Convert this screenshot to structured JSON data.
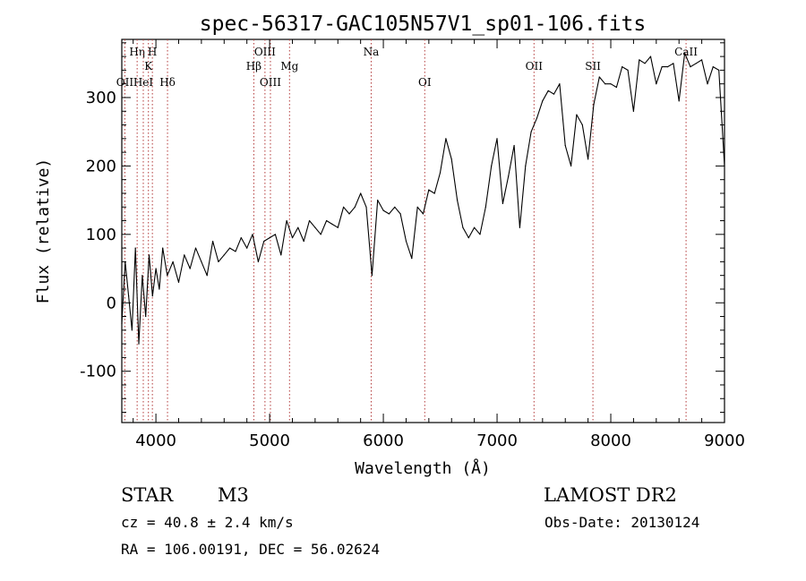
{
  "chart_data": {
    "type": "line",
    "title": "spec-56317-GAC105N57V1_sp01-106.fits",
    "xlabel": "Wavelength (Å)",
    "ylabel": "Flux (relative)",
    "xlim": [
      3700,
      9000
    ],
    "ylim": [
      -175,
      385
    ],
    "xticks": [
      4000,
      5000,
      6000,
      7000,
      8000,
      9000
    ],
    "yticks": [
      -100,
      0,
      100,
      200,
      300
    ],
    "series": [
      {
        "x": [
          3700,
          3730,
          3760,
          3790,
          3820,
          3850,
          3880,
          3910,
          3940,
          3970,
          4000,
          4030,
          4060,
          4100,
          4150,
          4200,
          4250,
          4300,
          4350,
          4400,
          4450,
          4500,
          4550,
          4600,
          4650,
          4700,
          4750,
          4800,
          4850,
          4900,
          4950,
          5000,
          5050,
          5100,
          5150,
          5200,
          5250,
          5300,
          5350,
          5400,
          5450,
          5500,
          5550,
          5600,
          5650,
          5700,
          5750,
          5800,
          5850,
          5900,
          5950,
          6000,
          6050,
          6100,
          6150,
          6200,
          6250,
          6300,
          6350,
          6400,
          6450,
          6500,
          6550,
          6600,
          6650,
          6700,
          6750,
          6800,
          6850,
          6900,
          6950,
          7000,
          7050,
          7100,
          7150,
          7200,
          7250,
          7300,
          7350,
          7400,
          7450,
          7500,
          7550,
          7600,
          7650,
          7700,
          7750,
          7800,
          7850,
          7900,
          7950,
          8000,
          8050,
          8100,
          8150,
          8200,
          8250,
          8300,
          8350,
          8400,
          8450,
          8500,
          8550,
          8600,
          8650,
          8700,
          8750,
          8800,
          8850,
          8900,
          8950,
          9000
        ],
        "y": [
          -30,
          60,
          10,
          -40,
          80,
          -60,
          40,
          -20,
          70,
          10,
          50,
          20,
          80,
          40,
          60,
          30,
          70,
          50,
          80,
          60,
          40,
          90,
          60,
          70,
          80,
          75,
          95,
          80,
          100,
          60,
          90,
          95,
          100,
          70,
          120,
          95,
          110,
          90,
          120,
          110,
          100,
          120,
          115,
          110,
          140,
          130,
          140,
          160,
          140,
          40,
          150,
          135,
          130,
          140,
          130,
          90,
          65,
          140,
          130,
          165,
          160,
          190,
          240,
          210,
          150,
          110,
          95,
          110,
          100,
          140,
          200,
          240,
          145,
          185,
          230,
          110,
          200,
          250,
          270,
          295,
          310,
          305,
          320,
          230,
          200,
          275,
          260,
          210,
          290,
          330,
          320,
          320,
          315,
          345,
          340,
          280,
          355,
          350,
          360,
          320,
          345,
          345,
          350,
          295,
          365,
          345,
          350,
          355,
          320,
          345,
          340,
          200
        ]
      }
    ],
    "annotations": {
      "lines": [
        {
          "label": "OII",
          "x": 3727,
          "row": 3
        },
        {
          "label": "Hη",
          "x": 3835,
          "row": 1
        },
        {
          "label": "HeI",
          "x": 3889,
          "row": 3
        },
        {
          "label": "K",
          "x": 3934,
          "row": 2
        },
        {
          "label": "H",
          "x": 3969,
          "row": 1
        },
        {
          "label": "Hδ",
          "x": 4102,
          "row": 3
        },
        {
          "label": "Hβ",
          "x": 4861,
          "row": 2
        },
        {
          "label": "OIII",
          "x": 4959,
          "row": 1
        },
        {
          "label": "OIII",
          "x": 5007,
          "row": 3
        },
        {
          "label": "Mg",
          "x": 5175,
          "row": 2
        },
        {
          "label": "Na",
          "x": 5893,
          "row": 1
        },
        {
          "label": "OI",
          "x": 6364,
          "row": 3
        },
        {
          "label": "OII",
          "x": 7325,
          "row": 2
        },
        {
          "label": "SII",
          "x": 7843,
          "row": 2
        },
        {
          "label": "CaII",
          "x": 8662,
          "row": 1
        }
      ]
    },
    "grid": false,
    "legend": "none"
  },
  "info": {
    "object_class": "STAR",
    "subclass": "M3",
    "survey": "LAMOST DR2",
    "redshift": "cz = 40.8 ± 2.4 km/s",
    "obs_date": "Obs-Date: 20130124",
    "coords": "RA = 106.00191, DEC =  56.02624"
  }
}
